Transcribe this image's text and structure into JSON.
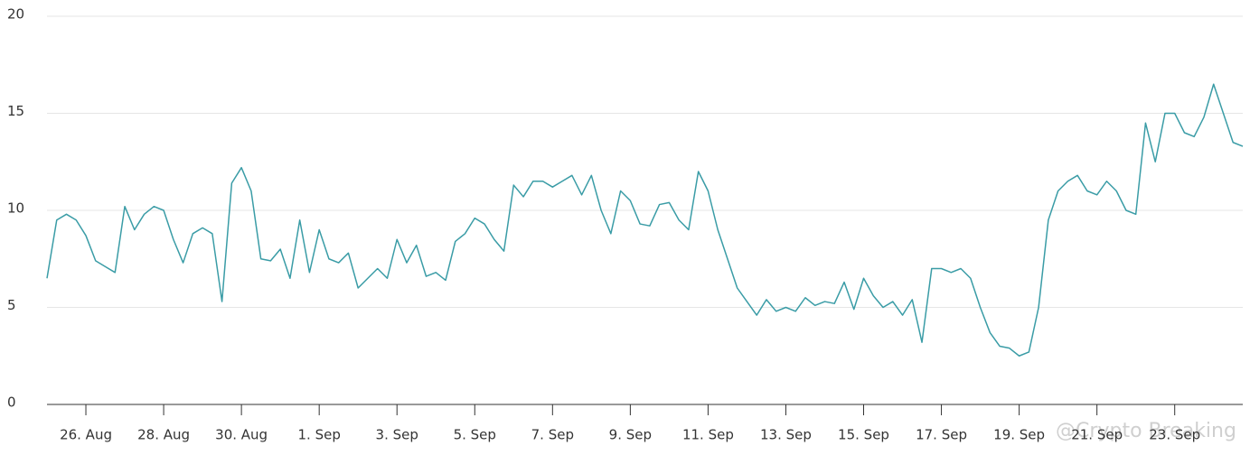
{
  "chart_data": {
    "type": "line",
    "categories": [
      null,
      null,
      null,
      null,
      "26. Aug",
      null,
      null,
      null,
      null,
      null,
      null,
      null,
      "28. Aug",
      null,
      null,
      null,
      null,
      null,
      null,
      null,
      "30. Aug",
      null,
      null,
      null,
      null,
      null,
      null,
      null,
      "1. Sep",
      null,
      null,
      null,
      null,
      null,
      null,
      null,
      "3. Sep",
      null,
      null,
      null,
      null,
      null,
      null,
      null,
      "5. Sep",
      null,
      null,
      null,
      null,
      null,
      null,
      null,
      "7. Sep",
      null,
      null,
      null,
      null,
      null,
      null,
      null,
      "9. Sep",
      null,
      null,
      null,
      null,
      null,
      null,
      null,
      "11. Sep",
      null,
      null,
      null,
      null,
      null,
      null,
      null,
      "13. Sep",
      null,
      null,
      null,
      null,
      null,
      null,
      null,
      "15. Sep",
      null,
      null,
      null,
      null,
      null,
      null,
      null,
      "17. Sep",
      null,
      null,
      null,
      null,
      null,
      null,
      null,
      "19. Sep",
      null,
      null,
      null,
      null,
      null,
      null,
      null,
      "21. Sep",
      null,
      null,
      null,
      null,
      null,
      null,
      null,
      "23. Sep",
      null,
      null,
      null,
      null,
      null,
      null,
      null
    ],
    "series": [
      {
        "color": "#3a9ca6",
        "values": [
          6.5,
          9.5,
          9.8,
          9.5,
          8.7,
          7.4,
          7.1,
          6.8,
          10.2,
          9.0,
          9.8,
          10.2,
          10.0,
          8.5,
          7.3,
          8.8,
          9.1,
          8.8,
          5.3,
          11.4,
          12.2,
          11.0,
          7.5,
          7.4,
          8.0,
          6.5,
          9.5,
          6.8,
          9.0,
          7.5,
          7.3,
          7.8,
          6.0,
          6.5,
          7.0,
          6.5,
          8.5,
          7.3,
          8.2,
          6.6,
          6.8,
          6.4,
          8.4,
          8.8,
          9.6,
          9.3,
          8.5,
          7.9,
          11.3,
          10.7,
          11.5,
          11.5,
          11.2,
          11.5,
          11.8,
          10.8,
          11.8,
          10.0,
          8.8,
          11.0,
          10.5,
          9.3,
          9.2,
          10.3,
          10.4,
          9.5,
          9.0,
          12.0,
          11.0,
          9.0,
          7.5,
          6.0,
          5.3,
          4.6,
          5.4,
          4.8,
          5.0,
          4.8,
          5.5,
          5.1,
          5.3,
          5.2,
          6.3,
          4.9,
          6.5,
          5.6,
          5.0,
          5.3,
          4.6,
          5.4,
          3.2,
          7.0,
          7.0,
          6.8,
          7.0,
          6.5,
          5.0,
          3.7,
          3.0,
          2.9,
          2.5,
          2.7,
          5.0,
          9.5,
          11.0,
          11.5,
          11.8,
          11.0,
          10.8,
          11.5,
          11.0,
          10.0,
          9.8,
          14.5,
          12.5,
          15.0,
          15.0,
          14.0,
          13.8,
          14.8,
          16.5,
          15.0,
          13.5,
          13.3
        ]
      }
    ],
    "ylim": [
      0,
      20
    ],
    "yticks": [
      0,
      5,
      10,
      15,
      20
    ],
    "grid": true,
    "watermark": "@Crypto Breaking"
  }
}
